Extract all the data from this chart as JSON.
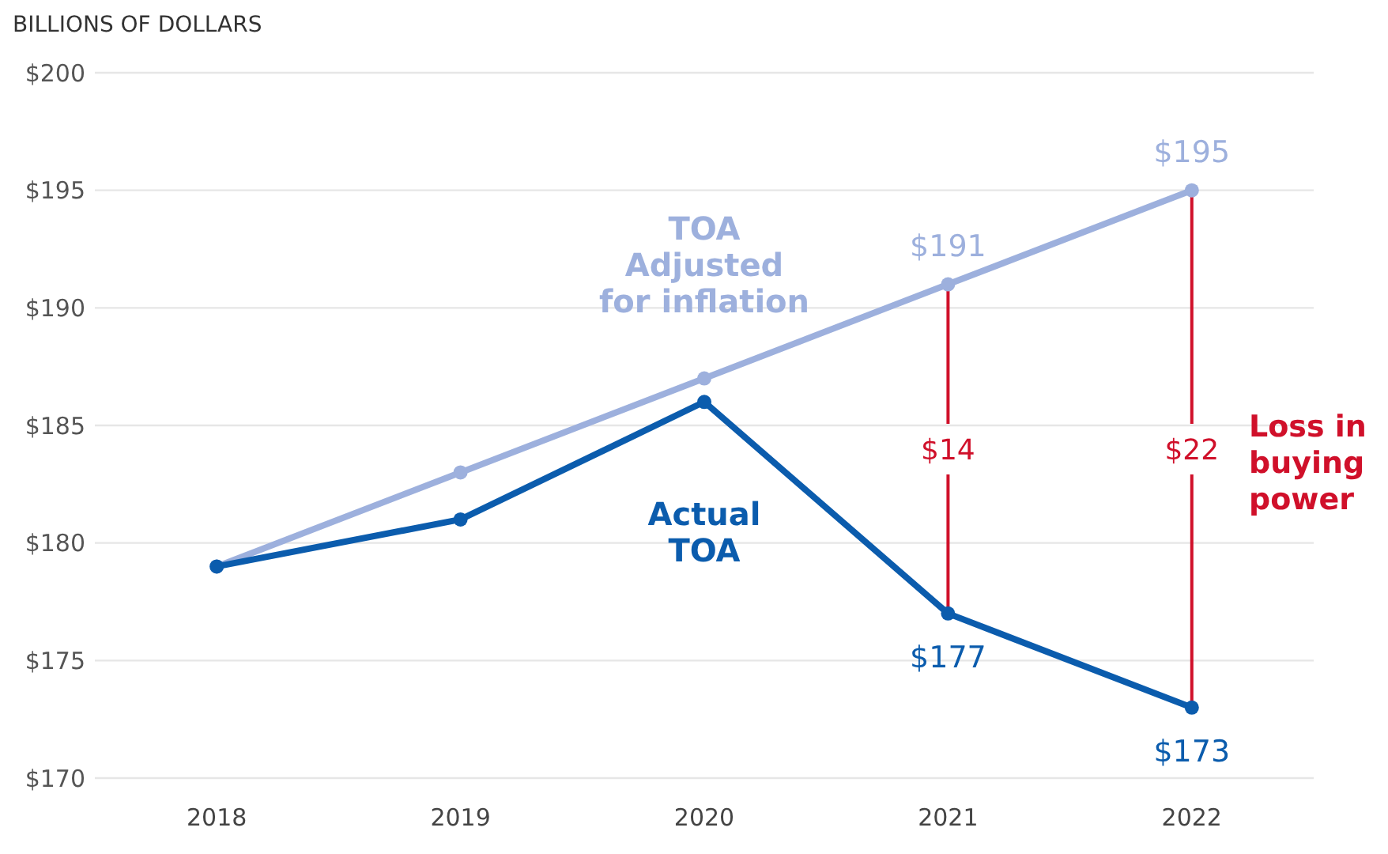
{
  "chart_data": {
    "type": "line",
    "ylabel": "BILLIONS OF DOLLARS",
    "categories": [
      "2018",
      "2019",
      "2020",
      "2021",
      "2022"
    ],
    "series": [
      {
        "name": "TOA\nAdjusted\nfor inflation",
        "color": "#9db0dd",
        "values": [
          179,
          183,
          187,
          191,
          195
        ],
        "value_labels": [
          null,
          null,
          null,
          "$191",
          "$195"
        ]
      },
      {
        "name": "Actual\nTOA",
        "color": "#0b5cad",
        "values": [
          179,
          181,
          186,
          177,
          173
        ],
        "value_labels": [
          null,
          null,
          null,
          "$177",
          "$173"
        ]
      }
    ],
    "ylim": [
      170,
      200
    ],
    "yticks": [
      {
        "value": 170,
        "label": "$170"
      },
      {
        "value": 175,
        "label": "$175"
      },
      {
        "value": 180,
        "label": "$180"
      },
      {
        "value": 185,
        "label": "$185"
      },
      {
        "value": 190,
        "label": "$190"
      },
      {
        "value": 195,
        "label": "$195"
      },
      {
        "value": 200,
        "label": "$200"
      }
    ],
    "grid": "y",
    "marker": "circle",
    "line_style": "solid",
    "annotations": [
      {
        "text": "$14",
        "x": "2021",
        "y": 191
      },
      {
        "text": "$22",
        "x": "2022",
        "y": 195
      },
      "Loss in\nbuying\npower"
    ]
  }
}
